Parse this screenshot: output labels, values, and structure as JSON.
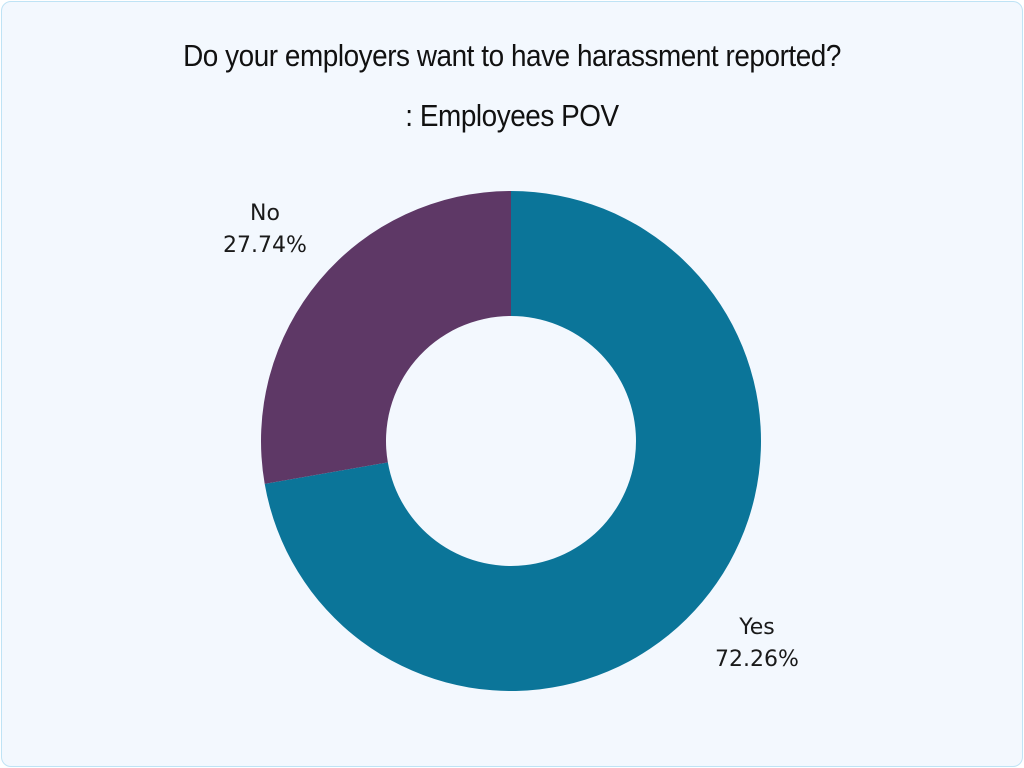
{
  "chart_data": {
    "type": "pie",
    "variant": "donut",
    "title": "Do your employers want to have harassment reported?",
    "subtitle": ": Employees POV",
    "categories": [
      "Yes",
      "No"
    ],
    "values": [
      72.26,
      27.74
    ],
    "unit": "%",
    "colors": [
      "#0b7599",
      "#5e3866"
    ],
    "labels": [
      {
        "name": "Yes",
        "value_text": "72.26%"
      },
      {
        "name": "No",
        "value_text": "27.74%"
      }
    ],
    "legend": "none",
    "start_angle": "12 o'clock",
    "direction": "clockwise (Yes), No occupies counter-clockwise from top"
  },
  "background": "#f3f8fe",
  "border_color": "#bfe3f5"
}
